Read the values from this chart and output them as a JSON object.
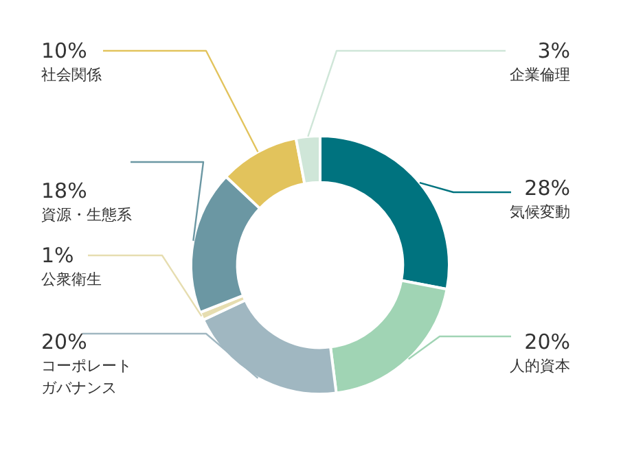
{
  "chart_data": {
    "type": "donut",
    "categories": [
      "気候変動",
      "人的資本",
      "コーポレートガバナンス",
      "公衆衛生",
      "資源・生態系",
      "社会関係",
      "企業倫理"
    ],
    "values": [
      28,
      20,
      20,
      1,
      18,
      10,
      3
    ],
    "value_labels": [
      "28%",
      "20%",
      "20%",
      "1%",
      "18%",
      "10%",
      "3%"
    ],
    "colors": [
      "#00737f",
      "#a0d4b4",
      "#a0b7c1",
      "#e6ddb0",
      "#6b97a3",
      "#e2c35c",
      "#cfe6d8"
    ],
    "legend": false
  }
}
